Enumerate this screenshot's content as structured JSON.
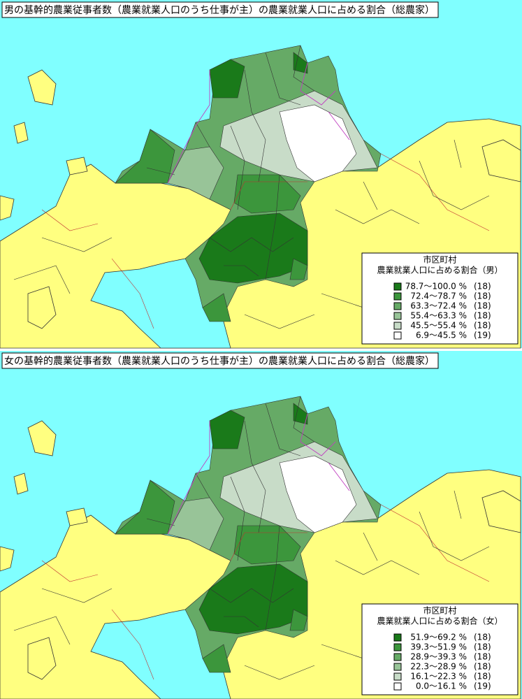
{
  "panels": [
    {
      "title": "男の基幹的農業従事者数（農業就業人口のうち仕事が主）の農業就業人口に占める割合（総農家）",
      "legend": {
        "title": "市区町村",
        "subtitle": "農業就業人口に占める割合（男）",
        "entries": [
          {
            "range": "78.7～100.0 %",
            "count": "(18)",
            "color": "#1a7a1a"
          },
          {
            "range": "72.4～78.7 %",
            "count": "(18)",
            "color": "#3c963c"
          },
          {
            "range": "63.3～72.4 %",
            "count": "(18)",
            "color": "#66aa66"
          },
          {
            "range": "55.4～63.3 %",
            "count": "(18)",
            "color": "#98c498"
          },
          {
            "range": "45.5～55.4 %",
            "count": "(18)",
            "color": "#c8dcc8"
          },
          {
            "range": "6.9～45.5 %",
            "count": "(19)",
            "color": "#ffffff"
          }
        ]
      }
    },
    {
      "title": "女の基幹的農業従事者数（農業就業人口のうち仕事が主）の農業就業人口に占める割合（総農家）",
      "legend": {
        "title": "市区町村",
        "subtitle": "農業就業人口に占める割合（女）",
        "entries": [
          {
            "range": "51.9～69.2 %",
            "count": "(18)",
            "color": "#1a7a1a"
          },
          {
            "range": "39.3～51.9 %",
            "count": "(18)",
            "color": "#3c963c"
          },
          {
            "range": "28.9～39.3 %",
            "count": "(18)",
            "color": "#66aa66"
          },
          {
            "range": "22.3～28.9 %",
            "count": "(18)",
            "color": "#98c498"
          },
          {
            "range": "16.1～22.3 %",
            "count": "(18)",
            "color": "#c8dcc8"
          },
          {
            "range": "0.0～16.1 %",
            "count": "(19)",
            "color": "#ffffff"
          }
        ]
      }
    }
  ]
}
